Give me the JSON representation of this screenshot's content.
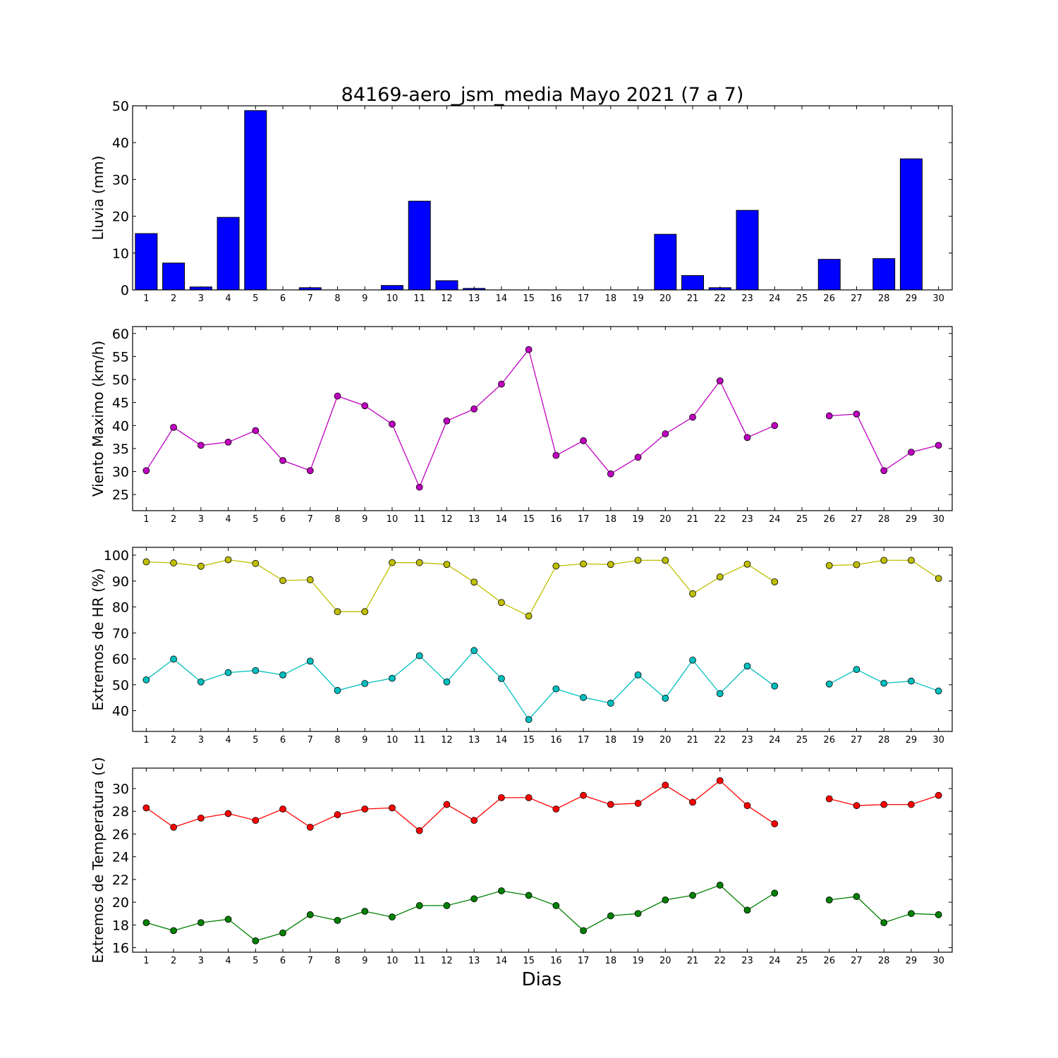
{
  "chart_data": [
    {
      "type": "bar",
      "title": "84169-aero_jsm_media Mayo 2021  (7 a 7)",
      "ylabel": "Lluvia (mm)",
      "xlabel": "",
      "categories": [
        "1",
        "2",
        "3",
        "4",
        "5",
        "6",
        "7",
        "8",
        "9",
        "10",
        "11",
        "12",
        "13",
        "14",
        "15",
        "16",
        "17",
        "18",
        "19",
        "20",
        "21",
        "22",
        "23",
        "24",
        "25",
        "26",
        "27",
        "28",
        "29",
        "30"
      ],
      "ylim": [
        0,
        50
      ],
      "yticks": [
        0,
        10,
        20,
        30,
        40,
        50
      ],
      "series": [
        {
          "color": "#0000ff",
          "values": [
            15.3,
            7.3,
            0.8,
            19.7,
            48.7,
            0,
            0.6,
            0,
            0,
            1.2,
            24.1,
            2.5,
            0.4,
            0,
            0,
            0,
            0,
            0,
            0,
            15.1,
            3.9,
            0.6,
            21.6,
            0,
            null,
            8.3,
            0,
            8.5,
            35.6,
            0
          ]
        }
      ]
    },
    {
      "type": "line",
      "ylabel": "Viento Maximo (km/h)",
      "xlabel": "",
      "categories": [
        "1",
        "2",
        "3",
        "4",
        "5",
        "6",
        "7",
        "8",
        "9",
        "10",
        "11",
        "12",
        "13",
        "14",
        "15",
        "16",
        "17",
        "18",
        "19",
        "20",
        "21",
        "22",
        "23",
        "24",
        "25",
        "26",
        "27",
        "28",
        "29",
        "30"
      ],
      "ylim": [
        21.5,
        61.5
      ],
      "yticks": [
        25,
        30,
        35,
        40,
        45,
        50,
        55,
        60
      ],
      "series": [
        {
          "color": "#bf00bf",
          "values": [
            30.2,
            39.6,
            35.7,
            36.4,
            38.9,
            32.4,
            30.2,
            46.4,
            44.3,
            40.3,
            26.6,
            41.0,
            43.6,
            49.0,
            56.5,
            33.5,
            36.7,
            29.5,
            33.1,
            38.2,
            41.8,
            49.7,
            37.4,
            40.0,
            null,
            42.1,
            42.5,
            30.2,
            34.2,
            35.7
          ]
        }
      ]
    },
    {
      "type": "line",
      "ylabel": "Extremos de HR (%)",
      "xlabel": "",
      "categories": [
        "1",
        "2",
        "3",
        "4",
        "5",
        "6",
        "7",
        "8",
        "9",
        "10",
        "11",
        "12",
        "13",
        "14",
        "15",
        "16",
        "17",
        "18",
        "19",
        "20",
        "21",
        "22",
        "23",
        "24",
        "25",
        "26",
        "27",
        "28",
        "29",
        "30"
      ],
      "ylim": [
        32,
        103
      ],
      "yticks": [
        40,
        50,
        60,
        70,
        80,
        90,
        100
      ],
      "series": [
        {
          "color": "#bfbf00",
          "values": [
            97.4,
            97.0,
            95.7,
            98.2,
            96.8,
            90.2,
            90.5,
            78.2,
            78.2,
            97.1,
            97.1,
            96.4,
            89.6,
            81.7,
            76.5,
            95.8,
            96.6,
            96.4,
            98.0,
            98.0,
            85.1,
            91.6,
            96.5,
            89.7,
            null,
            96.0,
            96.3,
            98.0,
            98.0,
            91.0
          ]
        },
        {
          "color": "#00bfbf",
          "values": [
            51.9,
            59.9,
            51.1,
            54.7,
            55.5,
            53.8,
            59.1,
            47.8,
            50.5,
            52.5,
            61.2,
            51.1,
            63.2,
            52.4,
            36.6,
            48.4,
            45.1,
            42.9,
            53.8,
            44.8,
            59.5,
            46.6,
            57.2,
            49.5,
            null,
            50.3,
            55.9,
            50.6,
            51.4,
            47.6
          ]
        }
      ]
    },
    {
      "type": "line",
      "ylabel": "Extremos de Temperatura (c)",
      "xlabel": "Dias",
      "categories": [
        "1",
        "2",
        "3",
        "4",
        "5",
        "6",
        "7",
        "8",
        "9",
        "10",
        "11",
        "12",
        "13",
        "14",
        "15",
        "16",
        "17",
        "18",
        "19",
        "20",
        "21",
        "22",
        "23",
        "24",
        "25",
        "26",
        "27",
        "28",
        "29",
        "30"
      ],
      "ylim": [
        15.6,
        31.8
      ],
      "yticks": [
        16,
        18,
        20,
        22,
        24,
        26,
        28,
        30
      ],
      "series": [
        {
          "color": "#ff0000",
          "values": [
            28.3,
            26.6,
            27.4,
            27.8,
            27.2,
            28.2,
            26.6,
            27.7,
            28.2,
            28.3,
            26.3,
            28.6,
            27.2,
            29.2,
            29.2,
            28.2,
            29.4,
            28.6,
            28.7,
            30.3,
            28.8,
            30.7,
            28.5,
            26.9,
            null,
            29.1,
            28.5,
            28.6,
            28.6,
            29.4
          ]
        },
        {
          "color": "#008000",
          "values": [
            18.2,
            17.5,
            18.2,
            18.5,
            16.6,
            17.3,
            18.9,
            18.4,
            19.2,
            18.7,
            19.7,
            19.7,
            20.3,
            21.0,
            20.6,
            19.7,
            17.5,
            18.8,
            19.0,
            20.2,
            20.6,
            21.5,
            19.3,
            20.8,
            null,
            20.2,
            20.5,
            18.2,
            19.0,
            18.9
          ]
        }
      ]
    }
  ]
}
